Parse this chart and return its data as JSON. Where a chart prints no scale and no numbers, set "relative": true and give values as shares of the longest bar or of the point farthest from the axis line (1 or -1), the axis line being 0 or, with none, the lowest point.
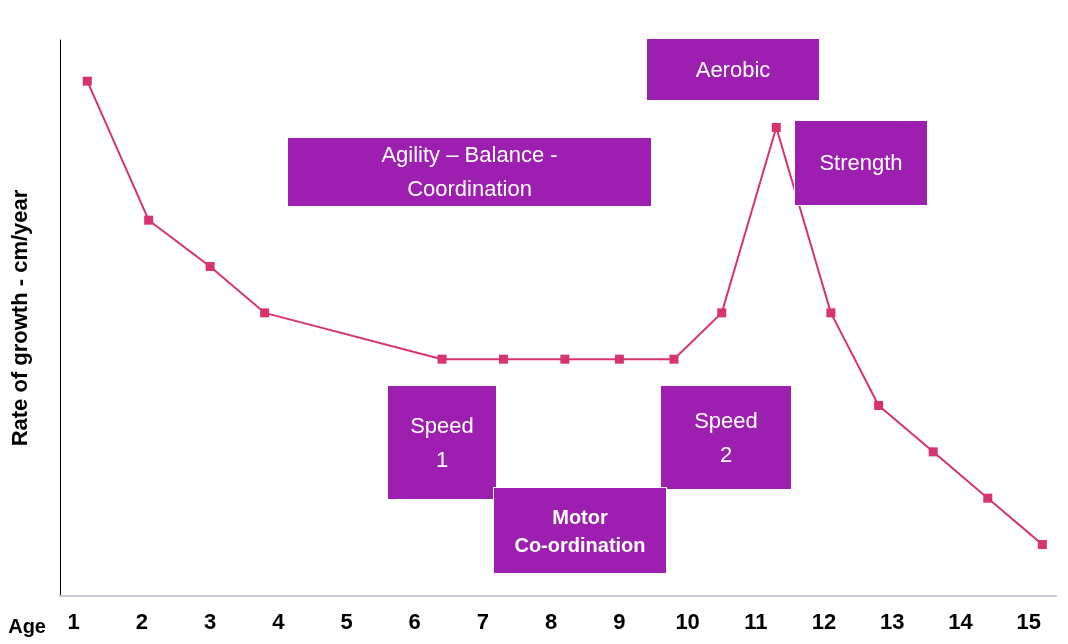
{
  "chart_data": {
    "type": "line",
    "relative": true,
    "xlabel": "Age",
    "ylabel": "Rate of growth - cm/year",
    "x": [
      1.2,
      2.1,
      3.0,
      3.8,
      6.4,
      7.3,
      8.2,
      9.0,
      9.8,
      10.5,
      11.3,
      12.1,
      12.8,
      13.6,
      14.4,
      15.2
    ],
    "series": [
      {
        "color": "#d6336f",
        "values": [
          1.0,
          0.73,
          0.64,
          0.55,
          0.46,
          0.46,
          0.46,
          0.46,
          0.46,
          0.55,
          0.91,
          0.55,
          0.37,
          0.28,
          0.19,
          0.1
        ]
      }
    ],
    "xlim": [
      0.8,
      15.4
    ],
    "xticks": [
      1,
      2,
      3,
      4,
      5,
      6,
      7,
      8,
      9,
      10,
      11,
      12,
      13,
      14,
      15
    ],
    "tick_labels": "x",
    "grid": false,
    "marker": "square",
    "line_style": "solid",
    "annotations": [
      "Agility – Balance - Coordination",
      "Aerobic",
      "Strength",
      "Speed 1",
      "Speed 2",
      "Motor Co-ordination"
    ]
  }
}
